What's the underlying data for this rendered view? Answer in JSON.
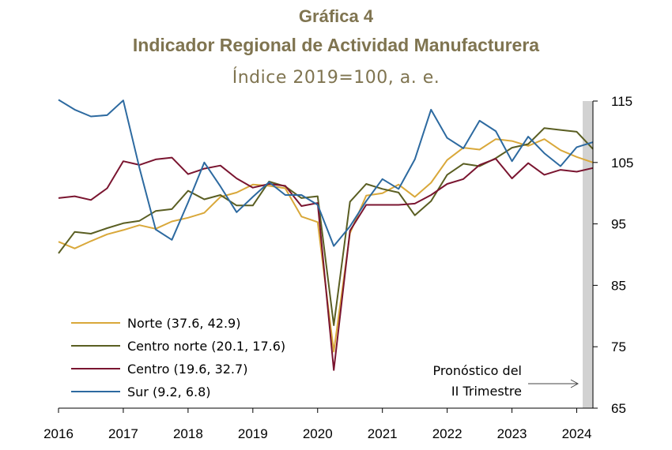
{
  "chart_data": {
    "type": "line",
    "title": "Gráfica 4",
    "subtitle": "Indicador Regional de Actividad Manufacturera",
    "units": "Índice 2019=100, a. e.",
    "ylim": [
      65,
      115
    ],
    "y_ticks": [
      "115",
      "105",
      "95",
      "85",
      "75",
      "65"
    ],
    "x_ticks": [
      "2016",
      "2017",
      "2018",
      "2019",
      "2020",
      "2021",
      "2022",
      "2023",
      "2024"
    ],
    "legend_position": "bottom-left",
    "forecast_note": [
      "Pronóstico del",
      "II Trimestre"
    ],
    "series": [
      {
        "name": "Norte",
        "detail": "(37.6, 42.9)",
        "color": "#d9a83a",
        "values": [
          92.1,
          91.0,
          92.2,
          93.3,
          94.0,
          94.8,
          94.2,
          95.4,
          96.0,
          96.8,
          99.4,
          100.1,
          101.4,
          101.2,
          100.8,
          96.2,
          95.3,
          74.2,
          93.5,
          99.6,
          100.0,
          101.4,
          99.4,
          101.7,
          105.4,
          107.4,
          107.1,
          108.8,
          108.5,
          107.7,
          108.8,
          107.0,
          105.9,
          105.0
        ]
      },
      {
        "name": "Centro norte",
        "detail": "(20.1, 17.6)",
        "color": "#5a5e22",
        "values": [
          90.2,
          93.7,
          93.4,
          94.3,
          95.1,
          95.5,
          97.1,
          97.4,
          100.4,
          99.0,
          99.7,
          98.0,
          98.0,
          101.9,
          101.1,
          99.2,
          99.5,
          78.5,
          98.6,
          101.5,
          100.7,
          100.1,
          96.4,
          98.7,
          103.0,
          104.8,
          104.4,
          105.7,
          107.4,
          108.0,
          110.6,
          110.3,
          110.0,
          107.2
        ]
      },
      {
        "name": "Centro",
        "detail": "(19.6, 32.7)",
        "color": "#7a1530",
        "values": [
          99.2,
          99.5,
          98.9,
          100.8,
          105.2,
          104.6,
          105.5,
          105.8,
          103.1,
          104.0,
          104.5,
          102.4,
          100.9,
          101.5,
          101.2,
          97.9,
          98.4,
          71.2,
          93.9,
          98.1,
          98.1,
          98.1,
          98.3,
          99.7,
          101.5,
          102.3,
          104.6,
          105.6,
          102.4,
          104.9,
          103.0,
          103.8,
          103.5,
          104.1
        ]
      },
      {
        "name": "Sur",
        "detail": "(9.2, 6.8)",
        "color": "#2d6aa0",
        "values": [
          115.2,
          113.6,
          112.5,
          112.7,
          115.1,
          104.1,
          94.1,
          92.4,
          98.5,
          105.0,
          101.1,
          96.9,
          99.4,
          101.8,
          99.7,
          99.7,
          98.1,
          91.4,
          94.6,
          98.7,
          102.3,
          100.7,
          105.5,
          113.6,
          109.0,
          107.3,
          111.8,
          110.1,
          105.2,
          109.2,
          106.5,
          104.4,
          107.5,
          108.3
        ]
      }
    ]
  }
}
